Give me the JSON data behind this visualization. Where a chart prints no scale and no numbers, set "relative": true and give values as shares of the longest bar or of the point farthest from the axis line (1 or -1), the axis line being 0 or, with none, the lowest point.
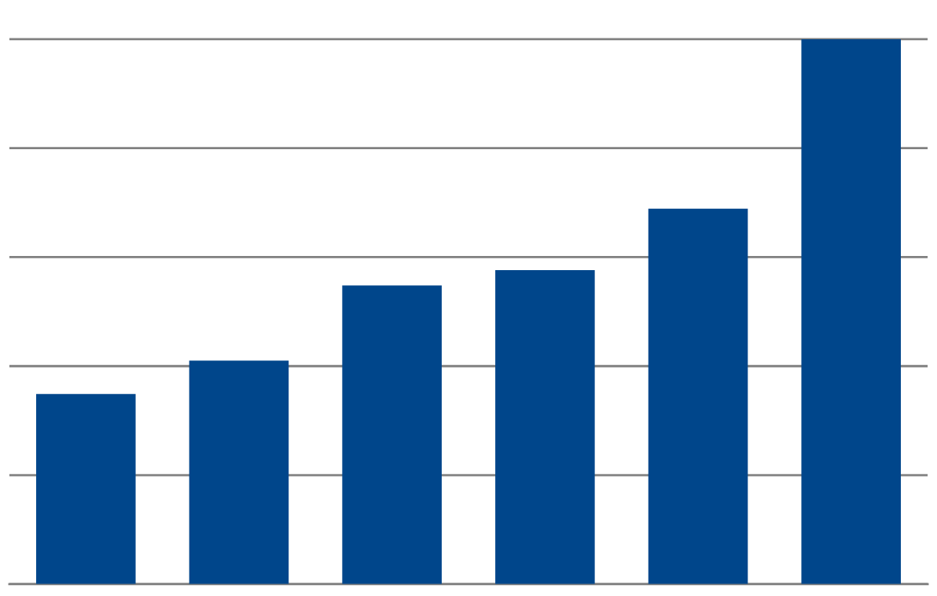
{
  "chart_data": {
    "type": "bar",
    "relative": true,
    "categories": [
      null,
      null,
      null,
      null,
      null,
      null
    ],
    "values": [
      0.349,
      0.41,
      0.548,
      0.576,
      0.689,
      1.0
    ],
    "color": "#00468b",
    "grid": "y"
  }
}
